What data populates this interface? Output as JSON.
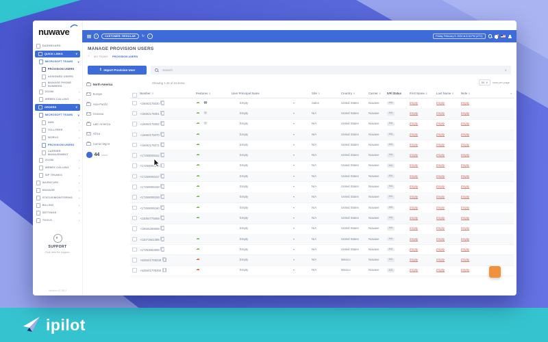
{
  "window": {
    "brand": "nuwave"
  },
  "topbar": {
    "customer_badge": "CUSTOMER: REGULAR",
    "datetime": "Friday, February 9, 2024 at 8:16 PM (UTC)"
  },
  "sidebar": {
    "items": [
      {
        "label": "DASHBOARD",
        "icon": "dashboard-icon",
        "indent": 0,
        "style": "normal",
        "chevron": null
      },
      {
        "label": "QUICK LINKS",
        "icon": "quick-links-icon",
        "indent": 0,
        "style": "primary",
        "chevron": "down"
      },
      {
        "label": "MICROSOFT TEAMS",
        "icon": "teams-icon",
        "indent": 1,
        "style": "link",
        "chevron": "down"
      },
      {
        "label": "PROVISION USERS",
        "icon": "provision-users-icon",
        "indent": 2,
        "style": "active-sub",
        "chevron": null
      },
      {
        "label": "ASSIGNED USERS",
        "icon": "assigned-users-icon",
        "indent": 2,
        "style": "normal",
        "chevron": null
      },
      {
        "label": "MANAGE PHONE NUMBERS",
        "icon": "phone-numbers-icon",
        "indent": 2,
        "style": "normal",
        "chevron": null
      },
      {
        "label": "ZOOM",
        "icon": "zoom-icon",
        "indent": 1,
        "style": "normal",
        "chevron": "right"
      },
      {
        "label": "WEBEX CALLING",
        "icon": "webex-icon",
        "indent": 1,
        "style": "normal",
        "chevron": "right"
      },
      {
        "label": "ORDERS",
        "icon": "orders-icon",
        "indent": 0,
        "style": "primary",
        "chevron": "down"
      },
      {
        "label": "MICROSOFT TEAMS",
        "icon": "teams-icon",
        "indent": 1,
        "style": "link",
        "chevron": "down"
      },
      {
        "label": "SMS",
        "icon": "sms-icon",
        "indent": 2,
        "style": "normal",
        "chevron": "right"
      },
      {
        "label": "TOLLFREE",
        "icon": "tollfree-icon",
        "indent": 2,
        "style": "normal",
        "chevron": "right"
      },
      {
        "label": "WORLD",
        "icon": "world-icon",
        "indent": 2,
        "style": "normal",
        "chevron": "right"
      },
      {
        "label": "PROVISION USERS",
        "icon": "provision-users-icon",
        "indent": 2,
        "style": "link-bold",
        "chevron": null
      },
      {
        "label": "CARRIER MANAGEMENT",
        "icon": "carrier-management-icon",
        "indent": 2,
        "style": "normal",
        "chevron": null
      },
      {
        "label": "ZOOM",
        "icon": "zoom-icon",
        "indent": 1,
        "style": "normal",
        "chevron": "right"
      },
      {
        "label": "WEBEX CALLING",
        "icon": "webex-icon",
        "indent": 1,
        "style": "normal",
        "chevron": "right"
      },
      {
        "label": "SIP TRUNKS",
        "icon": "sip-trunks-icon",
        "indent": 1,
        "style": "normal",
        "chevron": "right"
      },
      {
        "label": "INVENTORY",
        "icon": "inventory-icon",
        "indent": 0,
        "style": "normal",
        "chevron": "right"
      },
      {
        "label": "MANAGE",
        "icon": "manage-icon",
        "indent": 0,
        "style": "normal",
        "chevron": "right"
      },
      {
        "label": "STATUS/MONITORING",
        "icon": "status-monitoring-icon",
        "indent": 0,
        "style": "normal",
        "chevron": "right"
      },
      {
        "label": "BILLING",
        "icon": "billing-icon",
        "indent": 0,
        "style": "normal",
        "chevron": "right"
      },
      {
        "label": "SETTINGS",
        "icon": "settings-icon",
        "indent": 0,
        "style": "normal",
        "chevron": "right"
      },
      {
        "label": "TOOLS",
        "icon": "tools-icon",
        "indent": 0,
        "style": "normal",
        "chevron": "right"
      }
    ],
    "support": {
      "title": "SUPPORT",
      "text": "Click here for support.",
      "version": "Version v2.25.2"
    }
  },
  "page": {
    "title": "MANAGE PROVISION USERS",
    "breadcrumb": [
      "MS TEAMS",
      "PROVISION USERS"
    ]
  },
  "toolbar": {
    "import_label": "Import Provision User",
    "search_placeholder": "Search"
  },
  "regions": {
    "items": [
      {
        "label": "North America",
        "active": true
      },
      {
        "label": "Europe"
      },
      {
        "label": "Asia-Pacific"
      },
      {
        "label": "Oceania"
      },
      {
        "label": "Latin America"
      },
      {
        "label": "Africa"
      },
      {
        "label": "Carrier Mgmt"
      }
    ],
    "count": "44",
    "count_label": "Users"
  },
  "table": {
    "summary": "Showing 1-44 of 44 items.",
    "rows_per_page": "50",
    "rows_per_page_label": "rows per page",
    "columns": [
      {
        "key": "number",
        "label": "Number",
        "sort": true
      },
      {
        "key": "features",
        "label": "Features",
        "sort": true
      },
      {
        "key": "upn",
        "label": "User Principal Name",
        "sort": false
      },
      {
        "key": "site",
        "label": "Site",
        "sort": true
      },
      {
        "key": "country",
        "label": "Country",
        "sort": true
      },
      {
        "key": "carrier",
        "label": "Carrier",
        "sort": true
      },
      {
        "key": "ivr",
        "label": "IVR Status",
        "sort": false,
        "bold": true
      },
      {
        "key": "first_name",
        "label": "First Name",
        "sort": true
      },
      {
        "key": "last_name",
        "label": "Last Name",
        "sort": true
      },
      {
        "key": "note",
        "label": "Note",
        "sort": true
      }
    ],
    "rows": [
      {
        "number": "+16692175020",
        "features": [
          "cloud-green",
          "deskphone"
        ],
        "upn": "Empty",
        "site": "Sales",
        "country": "United States",
        "carrier": "Nuwave",
        "ivr": "N/A",
        "first_name": "Empty",
        "last_name": "Empty",
        "note": "Empty"
      },
      {
        "number": "+16692175051",
        "features": [
          "cloud-green",
          "handset"
        ],
        "upn": "Empty",
        "site": "N/A",
        "country": "United States",
        "carrier": "Nuwave",
        "ivr": "N/A",
        "first_name": "Empty",
        "last_name": "Empty",
        "note": "Empty"
      },
      {
        "number": "+16692175052",
        "features": [
          "cloud-green",
          "handset"
        ],
        "upn": "Empty",
        "site": "N/A",
        "country": "United States",
        "carrier": "Nuwave",
        "ivr": "N/A",
        "first_name": "Empty",
        "last_name": "Empty",
        "note": "Empty"
      },
      {
        "number": "+16692175070",
        "features": [
          "cloud-green"
        ],
        "upn": "Empty",
        "site": "N/A",
        "country": "United States",
        "carrier": "Nuwave",
        "ivr": "N/A",
        "first_name": "Empty",
        "last_name": "Empty",
        "note": "Empty"
      },
      {
        "number": "+16692175071",
        "features": [
          "cloud-green"
        ],
        "upn": "Empty",
        "site": "N/A",
        "country": "United States",
        "carrier": "Nuwave",
        "ivr": "N/A",
        "first_name": "Empty",
        "last_name": "Empty",
        "note": "Empty"
      },
      {
        "number": "+17259008152",
        "features": [
          "cloud-green"
        ],
        "upn": "Empty",
        "site": "N/A",
        "country": "United States",
        "carrier": "Nuwave",
        "ivr": "N/A",
        "first_name": "Empty",
        "last_name": "Empty",
        "note": "Empty"
      },
      {
        "number": "+17259008154",
        "features": [
          "cloud-green"
        ],
        "upn": "Empty",
        "site": "N/A",
        "country": "United States",
        "carrier": "Nuwave",
        "ivr": "N/A",
        "first_name": "Empty",
        "last_name": "Empty",
        "note": "Empty"
      },
      {
        "number": "+17259008157",
        "features": [
          "cloud-green"
        ],
        "upn": "Empty",
        "site": "N/A",
        "country": "United States",
        "carrier": "Nuwave",
        "ivr": "N/A",
        "first_name": "Empty",
        "last_name": "Empty",
        "note": "Empty"
      },
      {
        "number": "+17259008158",
        "features": [
          "cloud-green"
        ],
        "upn": "Empty",
        "site": "N/A",
        "country": "United States",
        "carrier": "Nuwave",
        "ivr": "N/A",
        "first_name": "Empty",
        "last_name": "Empty",
        "note": "Empty"
      },
      {
        "number": "+17259008159",
        "features": [
          "cloud-green"
        ],
        "upn": "Empty",
        "site": "N/A",
        "country": "United States",
        "carrier": "Nuwave",
        "ivr": "N/A",
        "first_name": "Empty",
        "last_name": "Empty",
        "note": "Empty"
      },
      {
        "number": "+17259008160",
        "features": [
          "cloud-green"
        ],
        "upn": "Empty",
        "site": "N/A",
        "country": "United States",
        "carrier": "Nuwave",
        "ivr": "N/A",
        "first_name": "Empty",
        "last_name": "Empty",
        "note": "Empty"
      },
      {
        "number": "+13054775069",
        "features": [
          "cloud-green"
        ],
        "upn": "Empty",
        "site": "N/A",
        "country": "United States",
        "carrier": "Nuwave",
        "ivr": "N/A",
        "first_name": "Empty",
        "last_name": "Empty",
        "note": "Empty"
      },
      {
        "number": "+18665259069",
        "features": [],
        "upn": "Empty",
        "site": "N/A",
        "country": "United States",
        "carrier": "Nuwave",
        "ivr": "N/A",
        "first_name": "Empty",
        "last_name": "Empty",
        "note": "Empty"
      },
      {
        "number": "+13073921385",
        "features": [
          "cloud-green"
        ],
        "upn": "Empty",
        "site": "N/A",
        "country": "United States",
        "carrier": "Nuwave",
        "ivr": "N/A",
        "first_name": "Empty",
        "last_name": "Empty",
        "note": "Empty"
      },
      {
        "number": "+17253662699",
        "features": [
          "cloud-green"
        ],
        "upn": "Empty",
        "site": "N/A",
        "country": "United States",
        "carrier": "Nuwave",
        "ivr": "N/A",
        "first_name": "Empty",
        "last_name": "Empty",
        "note": "Empty"
      },
      {
        "number": "+525641709239",
        "features": [
          "cloud-orange"
        ],
        "upn": "Empty",
        "site": "N/A",
        "country": "Mexico",
        "carrier": "Nuwave",
        "ivr": "N/A",
        "first_name": "Empty",
        "last_name": "Empty",
        "note": "Empty"
      },
      {
        "number": "+525641709365",
        "features": [
          "cloud-orange"
        ],
        "upn": "Empty",
        "site": "N/A",
        "country": "Mexico",
        "carrier": "Nuwave",
        "ivr": "N/A",
        "first_name": "Empty",
        "last_name": "Empty",
        "note": "Empty"
      }
    ]
  },
  "footer": {
    "brand": "ipilot"
  },
  "colors": {
    "accent": "#3d6bd8",
    "teal": "#35c4cf",
    "feature_green": "#79b844",
    "feature_orange": "#e2662e",
    "empty_red": "#c9685e",
    "fab_orange": "#f0923d",
    "band_periwinkle": "#9aa5ee"
  }
}
